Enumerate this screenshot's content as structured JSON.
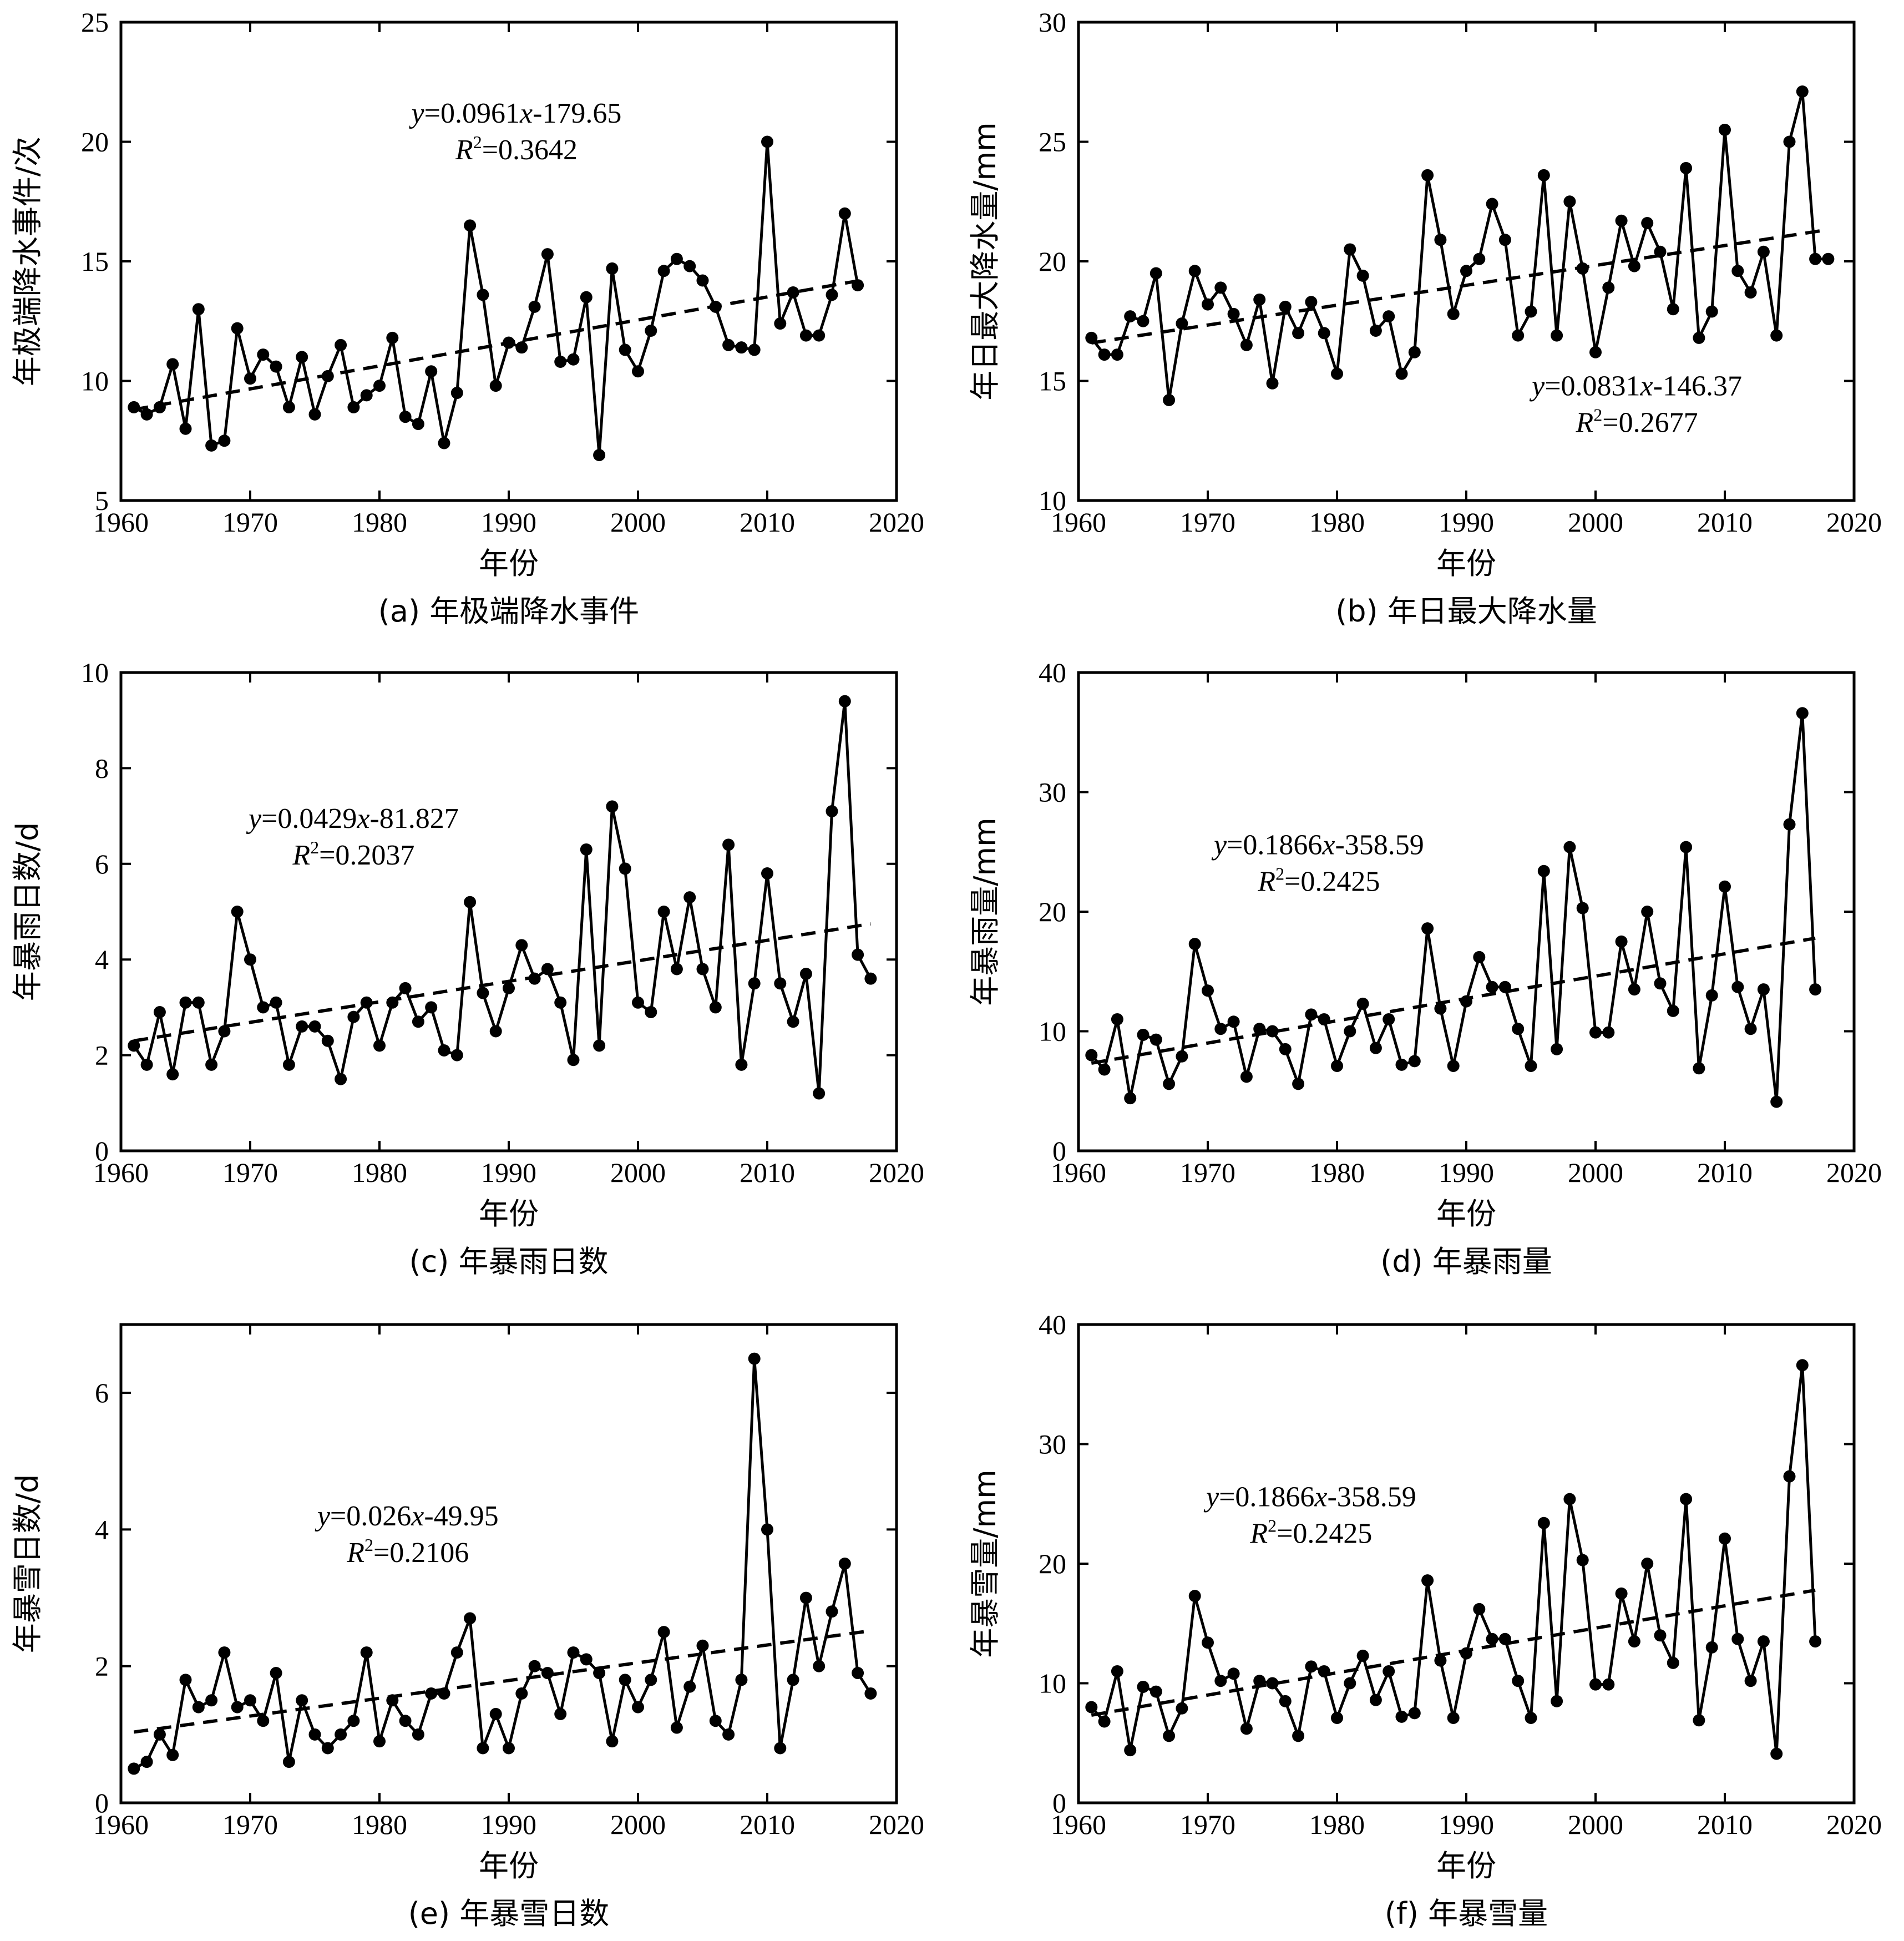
{
  "chart_data": [
    {
      "type": "line",
      "caption": "(a) 年极端降水事件",
      "xlabel": "年份",
      "ylabel": "年极端降水事件/次",
      "xlim": [
        1960,
        2020
      ],
      "ylim": [
        5,
        25
      ],
      "xticks": [
        1960,
        1970,
        1980,
        1990,
        2000,
        2010,
        2020
      ],
      "yticks": [
        5,
        10,
        15,
        20,
        25
      ],
      "equation": {
        "y": "y",
        "coef": "=0.0961",
        "x": "x",
        "rest": "-179.65"
      },
      "r2": {
        "r": "R",
        "sup": "2",
        "value": "=0.3642"
      },
      "trend": {
        "slope": 0.0961,
        "intercept": -179.65
      },
      "x": [
        1961,
        1962,
        1963,
        1964,
        1965,
        1966,
        1967,
        1968,
        1969,
        1970,
        1971,
        1972,
        1973,
        1974,
        1975,
        1976,
        1977,
        1978,
        1979,
        1980,
        1981,
        1982,
        1983,
        1984,
        1985,
        1986,
        1987,
        1988,
        1989,
        1990,
        1991,
        1992,
        1993,
        1994,
        1995,
        1996,
        1997,
        1998,
        1999,
        2000,
        2001,
        2002,
        2003,
        2004,
        2005,
        2006,
        2007,
        2008,
        2009,
        2010,
        2011,
        2012,
        2013,
        2014,
        2015,
        2016,
        2017
      ],
      "values": [
        8.9,
        8.6,
        8.9,
        10.7,
        8,
        13,
        7.3,
        7.5,
        12.2,
        10.1,
        11.1,
        10.6,
        8.9,
        11,
        8.6,
        10.2,
        11.5,
        8.9,
        9.4,
        9.8,
        11.8,
        8.5,
        8.2,
        10.4,
        7.4,
        9.5,
        16.5,
        13.6,
        9.8,
        11.6,
        11.4,
        13.1,
        15.3,
        10.8,
        10.9,
        13.5,
        6.9,
        14.7,
        11.3,
        10.4,
        12.1,
        14.6,
        15.1,
        14.8,
        14.2,
        13.1,
        11.5,
        11.4,
        11.3,
        20,
        12.4,
        13.7,
        11.9,
        11.9,
        13.6,
        17,
        14
      ]
    },
    {
      "type": "line",
      "caption": "(b) 年日最大降水量",
      "xlabel": "年份",
      "ylabel": "年日最大降水量/mm",
      "xlim": [
        1960,
        2020
      ],
      "ylim": [
        10,
        30
      ],
      "xticks": [
        1960,
        1970,
        1980,
        1990,
        2000,
        2010,
        2020
      ],
      "yticks": [
        10,
        15,
        20,
        25,
        30
      ],
      "equation": {
        "y": "y",
        "coef": "=0.0831",
        "x": "x",
        "rest": "-146.37"
      },
      "r2": {
        "r": "R",
        "sup": "2",
        "value": "=0.2677"
      },
      "trend": {
        "slope": 0.0831,
        "intercept": -146.37
      },
      "x": [
        1961,
        1962,
        1963,
        1964,
        1965,
        1966,
        1967,
        1968,
        1969,
        1970,
        1971,
        1972,
        1973,
        1974,
        1975,
        1976,
        1977,
        1978,
        1979,
        1980,
        1981,
        1982,
        1983,
        1984,
        1985,
        1986,
        1987,
        1988,
        1989,
        1990,
        1991,
        1992,
        1993,
        1994,
        1995,
        1996,
        1997,
        1998,
        1999,
        2000,
        2001,
        2002,
        2003,
        2004,
        2005,
        2006,
        2007,
        2008,
        2009,
        2010,
        2011,
        2012,
        2013,
        2014,
        2015,
        2016,
        2017,
        2018
      ],
      "values": [
        16.8,
        16.1,
        16.1,
        17.7,
        17.5,
        19.5,
        14.2,
        17.4,
        19.6,
        18.2,
        18.9,
        17.8,
        16.5,
        18.4,
        14.9,
        18.1,
        17,
        18.3,
        17,
        15.3,
        20.5,
        19.4,
        17.1,
        17.7,
        15.3,
        16.2,
        23.6,
        20.9,
        17.8,
        19.6,
        20.1,
        22.4,
        20.9,
        16.9,
        17.9,
        23.6,
        16.9,
        22.5,
        19.7,
        16.2,
        18.9,
        21.7,
        19.8,
        21.6,
        20.4,
        18,
        23.9,
        16.8,
        17.9,
        25.5,
        19.6,
        18.7,
        20.4,
        16.9,
        25,
        27.1,
        20.1,
        20.1
      ]
    },
    {
      "type": "line",
      "caption": "(c) 年暴雨日数",
      "xlabel": "年份",
      "ylabel": "年暴雨日数/d",
      "xlim": [
        1960,
        2020
      ],
      "ylim": [
        0,
        10
      ],
      "xticks": [
        1960,
        1970,
        1980,
        1990,
        2000,
        2010,
        2020
      ],
      "yticks": [
        0,
        2,
        4,
        6,
        8,
        10
      ],
      "equation": {
        "y": "y",
        "coef": "=0.0429",
        "x": "x",
        "rest": "-81.827"
      },
      "r2": {
        "r": "R",
        "sup": "2",
        "value": "=0.2037"
      },
      "trend": {
        "slope": 0.0429,
        "intercept": -81.827
      },
      "x": [
        1961,
        1962,
        1963,
        1964,
        1965,
        1966,
        1967,
        1968,
        1969,
        1970,
        1971,
        1972,
        1973,
        1974,
        1975,
        1976,
        1977,
        1978,
        1979,
        1980,
        1981,
        1982,
        1983,
        1984,
        1985,
        1986,
        1987,
        1988,
        1989,
        1990,
        1991,
        1992,
        1993,
        1994,
        1995,
        1996,
        1997,
        1998,
        1999,
        2000,
        2001,
        2002,
        2003,
        2004,
        2005,
        2006,
        2007,
        2008,
        2009,
        2010,
        2011,
        2012,
        2013,
        2014,
        2015,
        2016,
        2017,
        2018
      ],
      "values": [
        2.2,
        1.8,
        2.9,
        1.6,
        3.1,
        3.1,
        1.8,
        2.5,
        5,
        4,
        3,
        3.1,
        1.8,
        2.6,
        2.6,
        2.3,
        1.5,
        2.8,
        3.1,
        2.2,
        3.1,
        3.4,
        2.7,
        3,
        2.1,
        2,
        5.2,
        3.3,
        2.5,
        3.4,
        4.3,
        3.6,
        3.8,
        3.1,
        1.9,
        6.3,
        2.2,
        7.2,
        5.9,
        3.1,
        2.9,
        5,
        3.8,
        5.3,
        3.8,
        3,
        6.4,
        1.8,
        3.5,
        5.8,
        3.5,
        2.7,
        3.7,
        1.2,
        7.1,
        9.4,
        4.1,
        3.6
      ]
    },
    {
      "type": "line",
      "caption": "(d) 年暴雨量",
      "xlabel": "年份",
      "ylabel": "年暴雨量/mm",
      "xlim": [
        1960,
        2020
      ],
      "ylim": [
        0,
        40
      ],
      "xticks": [
        1960,
        1970,
        1980,
        1990,
        2000,
        2010,
        2020
      ],
      "yticks": [
        0,
        10,
        20,
        30,
        40
      ],
      "equation": {
        "y": "y",
        "coef": "=0.1866",
        "x": "x",
        "rest": "-358.59"
      },
      "r2": {
        "r": "R",
        "sup": "2",
        "value": "=0.2425"
      },
      "trend": {
        "slope": 0.1866,
        "intercept": -358.59
      },
      "x": [
        1961,
        1962,
        1963,
        1964,
        1965,
        1966,
        1967,
        1968,
        1969,
        1970,
        1971,
        1972,
        1973,
        1974,
        1975,
        1976,
        1977,
        1978,
        1979,
        1980,
        1981,
        1982,
        1983,
        1984,
        1985,
        1986,
        1987,
        1988,
        1989,
        1990,
        1991,
        1992,
        1993,
        1994,
        1995,
        1996,
        1997,
        1998,
        1999,
        2000,
        2001,
        2002,
        2003,
        2004,
        2005,
        2006,
        2007,
        2008,
        2009,
        2010,
        2011,
        2012,
        2013,
        2014,
        2015,
        2016,
        2017
      ],
      "values": [
        8,
        6.8,
        11,
        4.4,
        9.7,
        9.3,
        5.6,
        7.9,
        17.3,
        13.4,
        10.2,
        10.8,
        6.2,
        10.2,
        10,
        8.5,
        5.6,
        11.4,
        11,
        7.1,
        10,
        12.3,
        8.6,
        11,
        7.2,
        7.5,
        18.6,
        11.9,
        7.1,
        12.5,
        16.2,
        13.7,
        13.7,
        10.2,
        7.1,
        23.4,
        8.5,
        25.4,
        20.3,
        9.9,
        9.9,
        17.5,
        13.5,
        20,
        14,
        11.7,
        25.4,
        6.9,
        13,
        22.1,
        13.7,
        10.2,
        13.5,
        4.1,
        27.3,
        36.6,
        13.5
      ]
    },
    {
      "type": "line",
      "caption": "(e) 年暴雪日数",
      "xlabel": "年份",
      "ylabel": "年暴雪日数/d",
      "xlim": [
        1960,
        2020
      ],
      "ylim": [
        0,
        7
      ],
      "xticks": [
        1960,
        1970,
        1980,
        1990,
        2000,
        2010,
        2020
      ],
      "yticks": [
        0,
        2,
        4,
        6
      ],
      "equation": {
        "y": "y",
        "coef": "=0.026",
        "x": "x",
        "rest": "-49.95"
      },
      "r2": {
        "r": "R",
        "sup": "2",
        "value": "=0.2106"
      },
      "trend": {
        "slope": 0.026,
        "intercept": -49.95
      },
      "x": [
        1961,
        1962,
        1963,
        1964,
        1965,
        1966,
        1967,
        1968,
        1969,
        1970,
        1971,
        1972,
        1973,
        1974,
        1975,
        1976,
        1977,
        1978,
        1979,
        1980,
        1981,
        1982,
        1983,
        1984,
        1985,
        1986,
        1987,
        1988,
        1989,
        1990,
        1991,
        1992,
        1993,
        1994,
        1995,
        1996,
        1997,
        1998,
        1999,
        2000,
        2001,
        2002,
        2003,
        2004,
        2005,
        2006,
        2007,
        2008,
        2009,
        2010,
        2011,
        2012,
        2013,
        2014,
        2015,
        2016,
        2017,
        2018
      ],
      "values": [
        0.5,
        0.6,
        1,
        0.7,
        1.8,
        1.4,
        1.5,
        2.2,
        1.4,
        1.5,
        1.2,
        1.9,
        0.6,
        1.5,
        1,
        0.8,
        1,
        1.2,
        2.2,
        0.9,
        1.5,
        1.2,
        1,
        1.6,
        1.6,
        2.2,
        2.7,
        0.8,
        1.3,
        0.8,
        1.6,
        2,
        1.9,
        1.3,
        2.2,
        2.1,
        1.9,
        0.9,
        1.8,
        1.4,
        1.8,
        2.5,
        1.1,
        1.7,
        2.3,
        1.2,
        1,
        1.8,
        6.5,
        4,
        0.8,
        1.8,
        3,
        2,
        2.8,
        3.5,
        1.9,
        1.6
      ]
    },
    {
      "type": "line",
      "caption": "(f) 年暴雪量",
      "xlabel": "年份",
      "ylabel": "年暴雪量/mm",
      "xlim": [
        1960,
        2020
      ],
      "ylim": [
        0,
        40
      ],
      "xticks": [
        1960,
        1970,
        1980,
        1990,
        2000,
        2010,
        2020
      ],
      "yticks": [
        0,
        10,
        20,
        30,
        40
      ],
      "equation": {
        "y": "y",
        "coef": "=0.1866",
        "x": "x",
        "rest": "-358.59"
      },
      "r2": {
        "r": "R",
        "sup": "2",
        "value": "=0.2425"
      },
      "trend": {
        "slope": 0.1866,
        "intercept": -358.59
      },
      "x": [
        1961,
        1962,
        1963,
        1964,
        1965,
        1966,
        1967,
        1968,
        1969,
        1970,
        1971,
        1972,
        1973,
        1974,
        1975,
        1976,
        1977,
        1978,
        1979,
        1980,
        1981,
        1982,
        1983,
        1984,
        1985,
        1986,
        1987,
        1988,
        1989,
        1990,
        1991,
        1992,
        1993,
        1994,
        1995,
        1996,
        1997,
        1998,
        1999,
        2000,
        2001,
        2002,
        2003,
        2004,
        2005,
        2006,
        2007,
        2008,
        2009,
        2010,
        2011,
        2012,
        2013,
        2014,
        2015,
        2016,
        2017
      ],
      "values": [
        8,
        6.8,
        11,
        4.4,
        9.7,
        9.3,
        5.6,
        7.9,
        17.3,
        13.4,
        10.2,
        10.8,
        6.2,
        10.2,
        10,
        8.5,
        5.6,
        11.4,
        11,
        7.1,
        10,
        12.3,
        8.6,
        11,
        7.2,
        7.5,
        18.6,
        11.9,
        7.1,
        12.5,
        16.2,
        13.7,
        13.7,
        10.2,
        7.1,
        23.4,
        8.5,
        25.4,
        20.3,
        9.9,
        9.9,
        17.5,
        13.5,
        20,
        14,
        11.7,
        25.4,
        6.9,
        13,
        22.1,
        13.7,
        10.2,
        13.5,
        4.1,
        27.3,
        36.6,
        13.5
      ]
    }
  ]
}
